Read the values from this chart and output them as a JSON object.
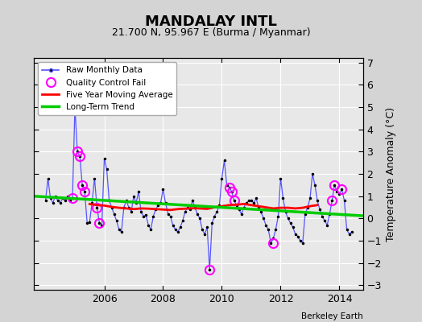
{
  "title": "MANDALAY INTL",
  "subtitle": "21.700 N, 95.967 E (Burma / Myanmar)",
  "ylabel": "Temperature Anomaly (°C)",
  "attribution": "Berkeley Earth",
  "bg_color": "#d4d4d4",
  "plot_bg_color": "#e8e8e8",
  "ylim": [
    -3.2,
    7.2
  ],
  "yticks": [
    -3,
    -2,
    -1,
    0,
    1,
    2,
    3,
    4,
    5,
    6,
    7
  ],
  "xlim": [
    2003.6,
    2014.8
  ],
  "xticks": [
    2006,
    2008,
    2010,
    2012,
    2014
  ],
  "raw_x": [
    2004.0,
    2004.083,
    2004.167,
    2004.25,
    2004.333,
    2004.417,
    2004.5,
    2004.583,
    2004.667,
    2004.75,
    2004.833,
    2004.917,
    2005.0,
    2005.083,
    2005.167,
    2005.25,
    2005.333,
    2005.417,
    2005.5,
    2005.583,
    2005.667,
    2005.75,
    2005.833,
    2005.917,
    2006.0,
    2006.083,
    2006.167,
    2006.25,
    2006.333,
    2006.417,
    2006.5,
    2006.583,
    2006.667,
    2006.75,
    2006.833,
    2006.917,
    2007.0,
    2007.083,
    2007.167,
    2007.25,
    2007.333,
    2007.417,
    2007.5,
    2007.583,
    2007.667,
    2007.75,
    2007.833,
    2007.917,
    2008.0,
    2008.083,
    2008.167,
    2008.25,
    2008.333,
    2008.417,
    2008.5,
    2008.583,
    2008.667,
    2008.75,
    2008.833,
    2008.917,
    2009.0,
    2009.083,
    2009.167,
    2009.25,
    2009.333,
    2009.417,
    2009.5,
    2009.583,
    2009.667,
    2009.75,
    2009.833,
    2009.917,
    2010.0,
    2010.083,
    2010.167,
    2010.25,
    2010.333,
    2010.417,
    2010.5,
    2010.583,
    2010.667,
    2010.75,
    2010.833,
    2010.917,
    2011.0,
    2011.083,
    2011.167,
    2011.25,
    2011.333,
    2011.417,
    2011.5,
    2011.583,
    2011.667,
    2011.75,
    2011.833,
    2011.917,
    2012.0,
    2012.083,
    2012.167,
    2012.25,
    2012.333,
    2012.417,
    2012.5,
    2012.583,
    2012.667,
    2012.75,
    2012.833,
    2012.917,
    2013.0,
    2013.083,
    2013.167,
    2013.25,
    2013.333,
    2013.417,
    2013.5,
    2013.583,
    2013.667,
    2013.75,
    2013.833,
    2013.917,
    2014.0,
    2014.083,
    2014.167,
    2014.25,
    2014.333,
    2014.417
  ],
  "raw_y": [
    0.8,
    1.8,
    0.9,
    0.7,
    1.0,
    0.8,
    0.7,
    0.9,
    0.8,
    1.0,
    0.8,
    0.9,
    5.0,
    3.0,
    2.8,
    1.5,
    1.2,
    -0.2,
    -0.15,
    0.7,
    1.8,
    0.5,
    -0.2,
    -0.3,
    2.7,
    2.2,
    0.8,
    0.5,
    0.2,
    -0.1,
    -0.5,
    -0.6,
    0.5,
    0.8,
    0.5,
    0.3,
    1.0,
    0.7,
    1.2,
    0.3,
    0.1,
    0.15,
    -0.3,
    -0.5,
    0.1,
    0.4,
    0.6,
    0.7,
    1.3,
    0.7,
    0.2,
    0.1,
    -0.3,
    -0.5,
    -0.6,
    -0.4,
    -0.1,
    0.3,
    0.5,
    0.4,
    0.8,
    0.5,
    0.2,
    0.0,
    -0.5,
    -0.7,
    -0.4,
    -2.3,
    -0.2,
    0.1,
    0.3,
    0.6,
    1.8,
    2.6,
    1.5,
    1.4,
    1.2,
    0.8,
    0.6,
    0.4,
    0.2,
    0.5,
    0.7,
    0.8,
    0.8,
    0.7,
    0.9,
    0.5,
    0.3,
    0.0,
    -0.3,
    -0.5,
    -1.1,
    -0.9,
    -0.5,
    0.1,
    1.8,
    0.9,
    0.3,
    0.0,
    -0.2,
    -0.4,
    -0.7,
    -0.8,
    -1.0,
    -1.1,
    0.2,
    0.5,
    0.9,
    2.0,
    1.5,
    0.8,
    0.4,
    0.1,
    -0.1,
    -0.3,
    0.2,
    0.8,
    1.5,
    1.2,
    1.1,
    1.3,
    0.8,
    -0.5,
    -0.7,
    -0.6
  ],
  "qc_fail_x": [
    2004.917,
    2005.0,
    2005.083,
    2005.167,
    2005.25,
    2005.333,
    2005.75,
    2005.833,
    2009.583,
    2010.25,
    2010.333,
    2010.417,
    2011.75,
    2013.75,
    2013.833,
    2014.083
  ],
  "qc_fail_y": [
    0.9,
    5.0,
    3.0,
    2.8,
    1.5,
    1.2,
    0.5,
    -0.2,
    -2.3,
    1.4,
    1.2,
    0.8,
    -1.1,
    0.8,
    1.5,
    1.3
  ],
  "ma_x": [
    2005.5,
    2005.75,
    2006.0,
    2006.25,
    2006.5,
    2006.75,
    2007.0,
    2007.25,
    2007.5,
    2007.75,
    2008.0,
    2008.25,
    2008.5,
    2008.75,
    2009.0,
    2009.25,
    2009.5,
    2009.75,
    2010.0,
    2010.25,
    2010.5,
    2010.75,
    2011.0,
    2011.25,
    2011.5,
    2011.75,
    2012.0,
    2012.25,
    2012.5,
    2012.75,
    2013.0,
    2013.25
  ],
  "ma_y": [
    0.65,
    0.6,
    0.58,
    0.52,
    0.48,
    0.45,
    0.42,
    0.45,
    0.44,
    0.42,
    0.4,
    0.38,
    0.42,
    0.44,
    0.46,
    0.45,
    0.43,
    0.5,
    0.55,
    0.6,
    0.62,
    0.65,
    0.6,
    0.55,
    0.5,
    0.45,
    0.48,
    0.48,
    0.45,
    0.48,
    0.55,
    0.6
  ],
  "trend_x": [
    2003.6,
    2014.8
  ],
  "trend_y": [
    1.0,
    0.12
  ]
}
